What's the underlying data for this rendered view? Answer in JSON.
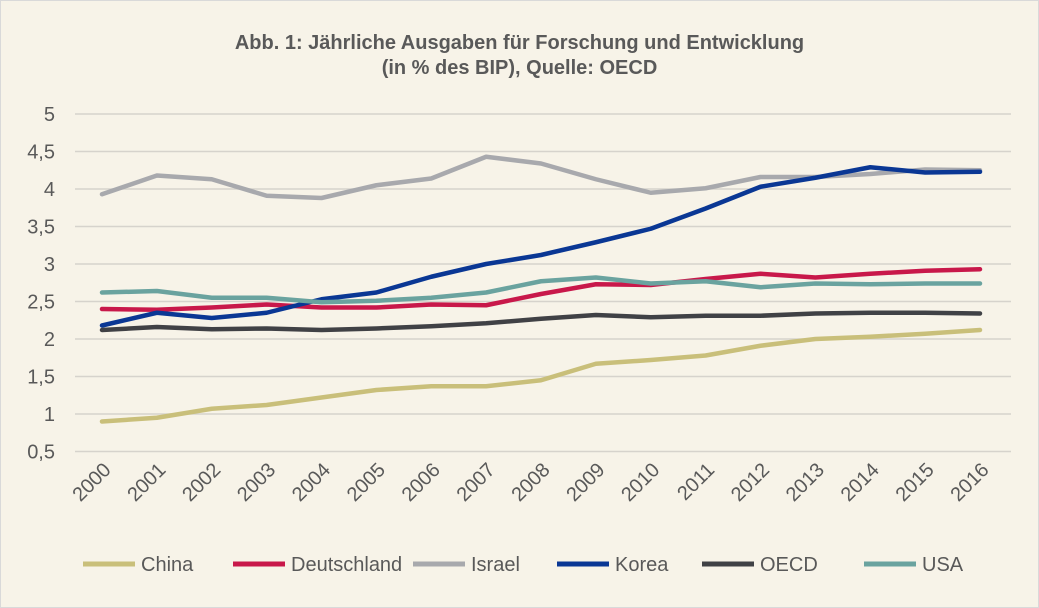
{
  "chart_data": {
    "type": "line",
    "title": "Abb. 1: Jährliche Ausgaben für Forschung und Entwicklung",
    "subtitle": "(in % des BIP), Quelle: OECD",
    "xlabel": "",
    "ylabel": "",
    "ylim": [
      0.5,
      5
    ],
    "yticks": [
      "0,5",
      "1",
      "1,5",
      "2",
      "2,5",
      "3",
      "3,5",
      "4",
      "4,5",
      "5"
    ],
    "ytick_values": [
      0.5,
      1,
      1.5,
      2,
      2.5,
      3,
      3.5,
      4,
      4.5,
      5
    ],
    "x": [
      "2000",
      "2001",
      "2002",
      "2003",
      "2004",
      "2005",
      "2006",
      "2007",
      "2008",
      "2009",
      "2010",
      "2011",
      "2012",
      "2013",
      "2014",
      "2015",
      "2016"
    ],
    "grid": true,
    "legend_position": "bottom",
    "series": [
      {
        "name": "China",
        "color": "#c9bf7a",
        "values": [
          0.9,
          0.95,
          1.07,
          1.12,
          1.22,
          1.32,
          1.37,
          1.37,
          1.45,
          1.67,
          1.72,
          1.78,
          1.91,
          2.0,
          2.03,
          2.07,
          2.12
        ]
      },
      {
        "name": "Deutschland",
        "color": "#c8184a",
        "values": [
          2.4,
          2.39,
          2.42,
          2.46,
          2.42,
          2.42,
          2.46,
          2.45,
          2.6,
          2.73,
          2.72,
          2.8,
          2.87,
          2.82,
          2.87,
          2.91,
          2.93
        ]
      },
      {
        "name": "Israel",
        "color": "#a8a9ad",
        "values": [
          3.93,
          4.18,
          4.13,
          3.91,
          3.88,
          4.05,
          4.14,
          4.43,
          4.34,
          4.13,
          3.95,
          4.01,
          4.16,
          4.16,
          4.2,
          4.26,
          4.25
        ]
      },
      {
        "name": "Korea",
        "color": "#0a3794",
        "values": [
          2.18,
          2.35,
          2.28,
          2.35,
          2.53,
          2.62,
          2.83,
          3.0,
          3.12,
          3.29,
          3.47,
          3.74,
          4.03,
          4.15,
          4.29,
          4.22,
          4.23
        ]
      },
      {
        "name": "OECD",
        "color": "#404145",
        "values": [
          2.12,
          2.16,
          2.13,
          2.14,
          2.12,
          2.14,
          2.17,
          2.21,
          2.27,
          2.32,
          2.29,
          2.31,
          2.31,
          2.34,
          2.35,
          2.35,
          2.34
        ]
      },
      {
        "name": "USA",
        "color": "#6aa39f",
        "values": [
          2.62,
          2.64,
          2.55,
          2.55,
          2.49,
          2.51,
          2.55,
          2.62,
          2.77,
          2.82,
          2.74,
          2.77,
          2.69,
          2.74,
          2.73,
          2.74,
          2.74
        ]
      }
    ]
  }
}
